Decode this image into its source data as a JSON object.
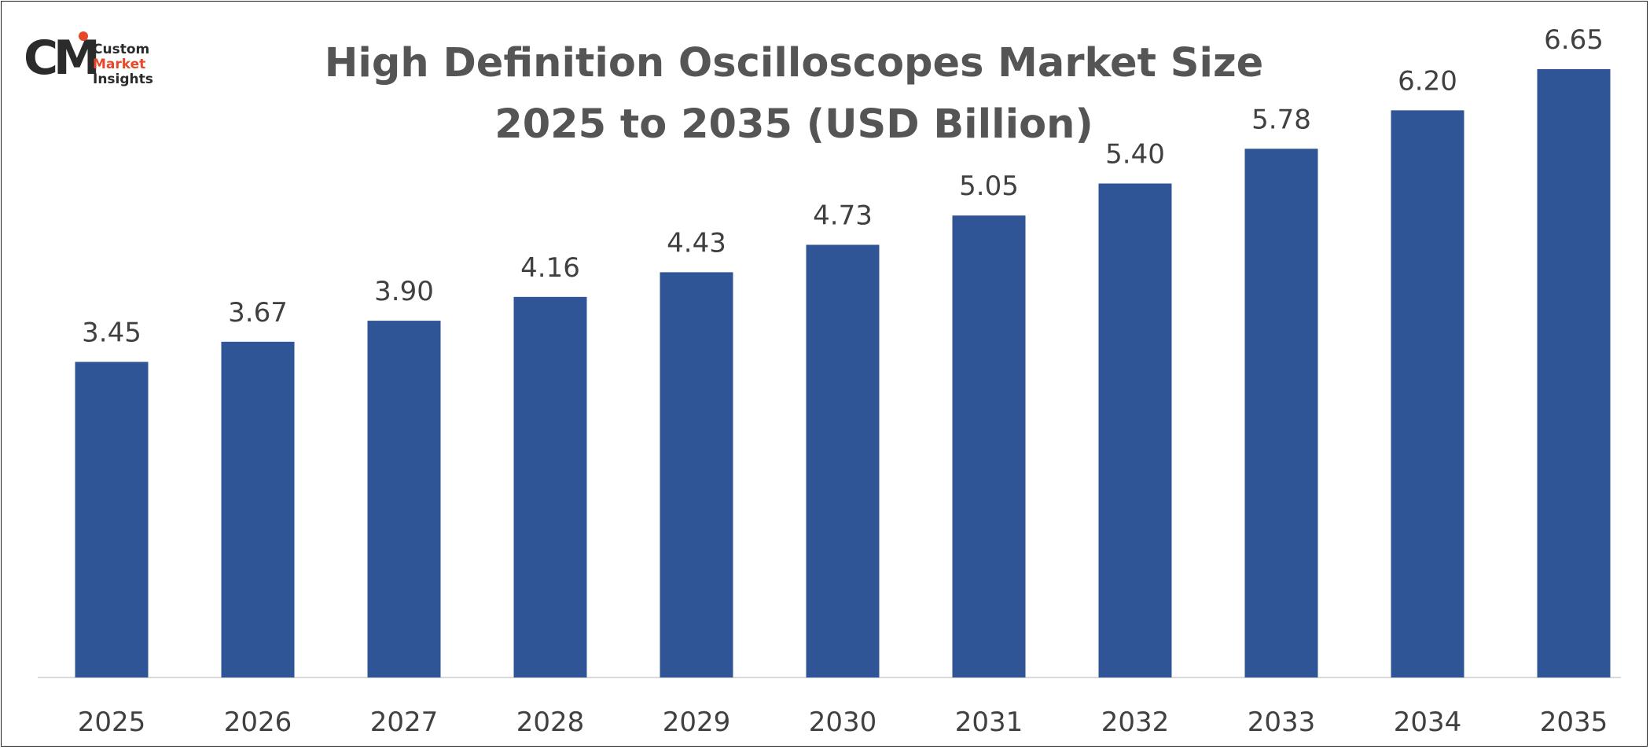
{
  "logo": {
    "mark": "CM",
    "line1": "Custom",
    "line2": "Market",
    "line3": "Insights"
  },
  "chart_data": {
    "type": "bar",
    "title_line1": "High Definition Oscilloscopes Market Size",
    "title_line2": "2025 to 2035 (USD Billion)",
    "categories": [
      "2025",
      "2026",
      "2027",
      "2028",
      "2029",
      "2030",
      "2031",
      "2032",
      "2033",
      "2034",
      "2035"
    ],
    "values": [
      3.45,
      3.67,
      3.9,
      4.16,
      4.43,
      4.73,
      5.05,
      5.4,
      5.78,
      6.2,
      6.65
    ],
    "value_labels": [
      "3.45",
      "3.67",
      "3.90",
      "4.16",
      "4.43",
      "4.73",
      "5.05",
      "5.40",
      "5.78",
      "6.20",
      "6.65"
    ],
    "ylim": [
      0,
      7.2
    ],
    "bar_color": "#2f5597",
    "grid": false,
    "legend": "none"
  }
}
